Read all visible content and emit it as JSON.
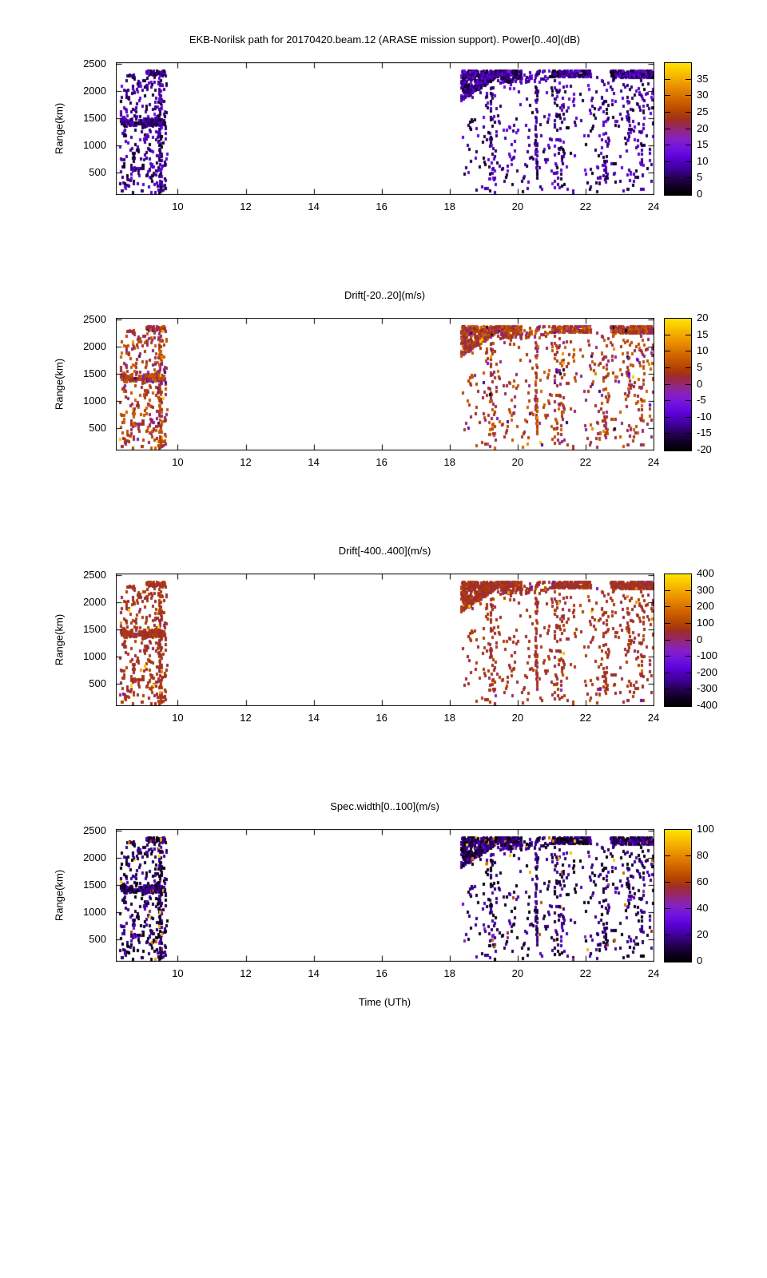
{
  "chart_data": {
    "type": "scatter",
    "figure_kind": "radar range-time-intensity, 4 stacked panels sharing time axis",
    "xlabel": "Time (UTh)",
    "ylabel": "Range(km)",
    "x_ticks": [
      10,
      12,
      14,
      16,
      18,
      20,
      22,
      24
    ],
    "y_ticks": [
      500,
      1000,
      1500,
      2000,
      2500
    ],
    "xlim": [
      8.18,
      24
    ],
    "ylim": [
      100,
      2530
    ],
    "background": "#ffffff",
    "text_color": "#000000",
    "palette_stops": [
      [
        0.0,
        "#000000"
      ],
      [
        0.06,
        "#0d0020"
      ],
      [
        0.12,
        "#23004d"
      ],
      [
        0.2,
        "#3f0099"
      ],
      [
        0.28,
        "#5a00d6"
      ],
      [
        0.35,
        "#7011e2"
      ],
      [
        0.42,
        "#8520c4"
      ],
      [
        0.47,
        "#8f2595"
      ],
      [
        0.52,
        "#97285c"
      ],
      [
        0.57,
        "#a02d25"
      ],
      [
        0.63,
        "#b34400"
      ],
      [
        0.72,
        "#d06400"
      ],
      [
        0.8,
        "#e68600"
      ],
      [
        0.88,
        "#f3ab00"
      ],
      [
        0.95,
        "#fccc00"
      ],
      [
        1.0,
        "#ffe100"
      ]
    ],
    "panels": [
      {
        "title": "EKB-Norilsk path for 20170420.beam.12 (ARASE mission support). Power[0..40](dB)",
        "colorbar": {
          "min": 0,
          "max": 40,
          "ticks": [
            0,
            5,
            10,
            15,
            20,
            25,
            30,
            35
          ]
        },
        "color_dist": {
          "base": 0.04,
          "span": 0.3,
          "outlier_rate": 0.02,
          "outlier_base": 0.25,
          "outlier_span": 0.2
        },
        "color_seed": 11
      },
      {
        "title": "Drift[-20..20](m/s)",
        "colorbar": {
          "min": -20,
          "max": 20,
          "ticks": [
            -20,
            -15,
            -10,
            -5,
            0,
            5,
            10,
            15,
            20
          ]
        },
        "color_dist": {
          "base": 0.47,
          "span": 0.25,
          "outlier_rate": 0.1,
          "outlier_base": 0.0,
          "outlier_span": 1.0
        },
        "color_seed": 22
      },
      {
        "title": "Drift[-400..400](m/s)",
        "colorbar": {
          "min": -400,
          "max": 400,
          "ticks": [
            -400,
            -300,
            -200,
            -100,
            0,
            100,
            200,
            300,
            400
          ]
        },
        "color_dist": {
          "base": 0.53,
          "span": 0.1,
          "outlier_rate": 0.04,
          "outlier_base": 0.3,
          "outlier_span": 0.7
        },
        "color_seed": 33
      },
      {
        "title": "Spec.width[0..100](m/s)",
        "colorbar": {
          "min": 0,
          "max": 100,
          "ticks": [
            0,
            20,
            40,
            60,
            80,
            100
          ]
        },
        "color_dist": {
          "base": 0.0,
          "span": 0.26,
          "outlier_rate": 0.06,
          "outlier_base": 0.3,
          "outlier_span": 0.7
        },
        "color_seed": 44
      }
    ],
    "echo_clusters": [
      {
        "name": "left-scatter",
        "t": [
          8.28,
          9.65
        ],
        "r": [
          110,
          2300
        ],
        "n": 300,
        "seed": 101
      },
      {
        "name": "left-hband-1400km",
        "t": [
          8.3,
          9.62
        ],
        "r": [
          1340,
          1470
        ],
        "n": 110,
        "seed": 102
      },
      {
        "name": "left-vline-9.45h",
        "t": [
          9.4,
          9.5
        ],
        "r": [
          110,
          2350
        ],
        "n": 80,
        "seed": 103
      },
      {
        "name": "left-topblob",
        "t": [
          9.05,
          9.62
        ],
        "r": [
          2270,
          2360
        ],
        "n": 40,
        "seed": 104
      },
      {
        "name": "right-wedge-18.3h",
        "t": [
          18.3,
          19.45
        ],
        "r": [
          2360,
          2360
        ],
        "wedge": [
          1790,
          2280
        ],
        "n": 400,
        "seed": 105
      },
      {
        "name": "right-topband-1",
        "t": [
          19.15,
          20.1
        ],
        "r": [
          2250,
          2360
        ],
        "n": 180,
        "seed": 106
      },
      {
        "name": "right-topband-1-fringe",
        "t": [
          19.5,
          20.1
        ],
        "r": [
          2140,
          2250
        ],
        "n": 40,
        "seed": 107
      },
      {
        "name": "right-topband-2",
        "t": [
          21.0,
          22.15
        ],
        "r": [
          2250,
          2360
        ],
        "n": 200,
        "seed": 108
      },
      {
        "name": "right-topband-3",
        "t": [
          22.7,
          24.0
        ],
        "r": [
          2230,
          2360
        ],
        "n": 240,
        "seed": 109
      },
      {
        "name": "right-scatter",
        "t": [
          18.35,
          24.0
        ],
        "r": [
          110,
          2250
        ],
        "n": 330,
        "seed": 110
      },
      {
        "name": "right-vline-20.5h",
        "t": [
          20.48,
          20.56
        ],
        "r": [
          150,
          2340
        ],
        "n": 50,
        "seed": 111
      },
      {
        "name": "right-stripe-19.2h",
        "t": [
          19.1,
          19.35
        ],
        "r": [
          300,
          2100
        ],
        "n": 40,
        "seed": 112
      },
      {
        "name": "right-stripe-21.2h",
        "t": [
          21.05,
          21.35
        ],
        "r": [
          200,
          2200
        ],
        "n": 50,
        "seed": 113
      },
      {
        "name": "right-stripe-22.5h",
        "t": [
          22.4,
          22.65
        ],
        "r": [
          200,
          2200
        ],
        "n": 45,
        "seed": 114
      },
      {
        "name": "right-stripe-23.4h",
        "t": [
          23.15,
          23.7
        ],
        "r": [
          150,
          2250
        ],
        "n": 60,
        "seed": 115
      },
      {
        "name": "mid-top-dots",
        "t": [
          20.15,
          20.95
        ],
        "r": [
          2150,
          2360
        ],
        "n": 25,
        "seed": 116
      }
    ]
  }
}
